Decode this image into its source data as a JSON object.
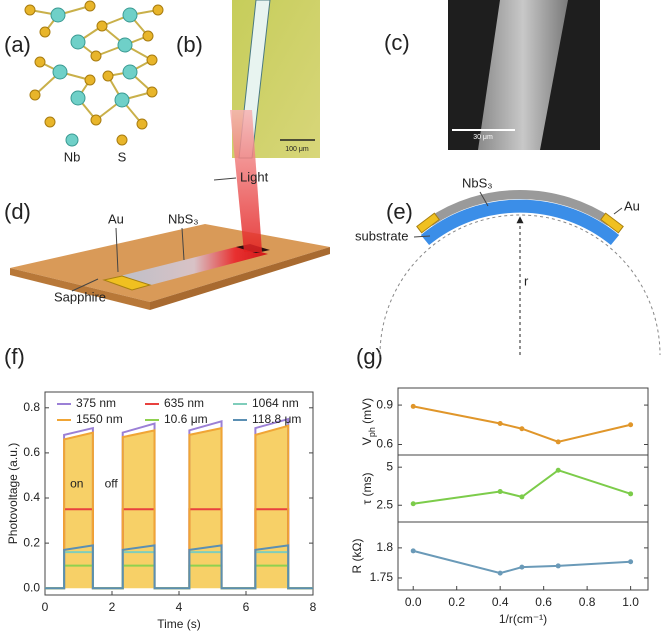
{
  "panel_labels": [
    "(a)",
    "(b)",
    "(c)",
    "(d)",
    "(e)",
    "(f)",
    "(g)"
  ],
  "structure": {
    "atoms": [
      "Nb",
      "S"
    ]
  },
  "optical_image": {
    "scale_bar": "100 μm"
  },
  "sem_image": {
    "scale_bar": "30 μm"
  },
  "device": {
    "light": "Light",
    "au": "Au",
    "nbs3": "NbS₃",
    "sapphire": "Sapphire"
  },
  "bending": {
    "nbs3": "NbS₃",
    "au": "Au",
    "substrate": "substrate",
    "radius": "r"
  },
  "chart_data": [
    {
      "type": "line",
      "xlabel": "Time (s)",
      "ylabel": "Photovoltage (a.u.)",
      "xlim": [
        0,
        8
      ],
      "ylim": [
        -0.03,
        0.87
      ],
      "xticks": [
        0,
        2,
        4,
        6,
        8
      ],
      "yticks": [
        {
          "value": 0,
          "label": "0.0"
        },
        0.2,
        0.4,
        0.6,
        0.8
      ],
      "legend": "top",
      "annotations": [
        "on",
        "off"
      ],
      "x": [
        0,
        0.57,
        0.57,
        1.43,
        1.43,
        2.32,
        2.32,
        3.27,
        3.27,
        4.31,
        4.31,
        5.27,
        5.27,
        6.28,
        6.28,
        7.26,
        7.26,
        8
      ],
      "series": [
        {
          "name": "375 nm",
          "color": "#9b80d6",
          "values": [
            0,
            0,
            0.68,
            0.71,
            0,
            0,
            0.69,
            0.73,
            0,
            0,
            0.7,
            0.74,
            0,
            0,
            0.71,
            0.75,
            0,
            0
          ]
        },
        {
          "name": "635 nm",
          "color": "#e8413e",
          "values": [
            0,
            0,
            0.35,
            0.35,
            0,
            0,
            0.35,
            0.35,
            0,
            0,
            0.35,
            0.35,
            0,
            0,
            0.35,
            0.35,
            0,
            0
          ]
        },
        {
          "name": "1064 nm",
          "color": "#7fcdbb",
          "values": [
            0,
            0,
            0.16,
            0.16,
            0,
            0,
            0.16,
            0.16,
            0,
            0,
            0.16,
            0.16,
            0,
            0,
            0.16,
            0.16,
            0,
            0
          ]
        },
        {
          "name": "1550 nm",
          "color": "#f0a535",
          "fill": "#f7d067",
          "values": [
            0,
            0,
            0.66,
            0.69,
            0,
            0,
            0.67,
            0.7,
            0,
            0,
            0.68,
            0.71,
            0,
            0,
            0.68,
            0.72,
            0,
            0
          ]
        },
        {
          "name": "10.6 μm",
          "color": "#8fd14f",
          "values": [
            0,
            0,
            0.1,
            0.1,
            0,
            0,
            0.1,
            0.1,
            0,
            0,
            0.1,
            0.1,
            0,
            0,
            0.1,
            0.1,
            0,
            0
          ]
        },
        {
          "name": "118.8 μm",
          "color": "#5b8fb3",
          "values": [
            0,
            0,
            0.17,
            0.19,
            0,
            0,
            0.17,
            0.19,
            0,
            0,
            0.17,
            0.19,
            0,
            0,
            0.17,
            0.19,
            0,
            0
          ]
        }
      ]
    },
    {
      "type": "line",
      "markers": true,
      "ylabel": [
        "V",
        "ph",
        " (mV)"
      ],
      "xlim": [
        -0.07,
        1.08
      ],
      "ylim": [
        0.52,
        1.03
      ],
      "yticks": [
        0.9,
        0.6
      ],
      "x": [
        0,
        0.4,
        0.5,
        0.667,
        1.0
      ],
      "series": [
        {
          "color": "#e0962a",
          "values": [
            0.89,
            0.76,
            0.72,
            0.62,
            0.75
          ]
        }
      ]
    },
    {
      "type": "line",
      "markers": true,
      "ylabel": "τ (ms)",
      "xlim": [
        -0.07,
        1.08
      ],
      "ylim": [
        1.4,
        5.8
      ],
      "yticks": [
        5,
        2.5
      ],
      "x": [
        0,
        0.4,
        0.5,
        0.667,
        1.0
      ],
      "series": [
        {
          "color": "#7ccc4a",
          "values": [
            2.6,
            3.4,
            3.05,
            4.8,
            3.25
          ]
        }
      ]
    },
    {
      "type": "line",
      "markers": true,
      "ylabel": "R (kΩ)",
      "xlabel": "1/r(cm⁻¹)",
      "xlim": [
        -0.07,
        1.08
      ],
      "ylim": [
        1.73,
        1.843
      ],
      "yticks": [
        1.8,
        1.75
      ],
      "xticks": [
        {
          "value": 0,
          "label": "0.0"
        },
        0.2,
        0.4,
        0.6,
        0.8,
        {
          "value": 1,
          "label": "1.0"
        }
      ],
      "x": [
        0,
        0.4,
        0.5,
        0.667,
        1.0
      ],
      "series": [
        {
          "color": "#6a9ab8",
          "values": [
            1.795,
            1.758,
            1.768,
            1.77,
            1.777
          ]
        }
      ]
    }
  ]
}
